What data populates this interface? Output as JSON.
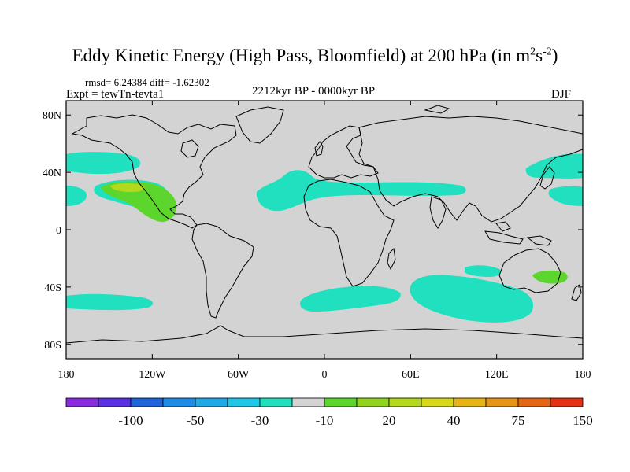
{
  "header": {
    "title": "Eddy Kinetic Energy (High Pass, Bloomfield) at 200 hPa (in m",
    "title_unit_sup1": "2",
    "title_unit_mid": "s",
    "title_unit_sup2": "-2",
    "title_close": ")",
    "stats": "rmsd= 6.24384 diff= -1.62302",
    "experiment": "Expt = tewTn-tevta1",
    "period": "2212kyr BP - 0000kyr BP",
    "season": "DJF"
  },
  "map": {
    "projection": "cylindrical-equidistant",
    "lon_range": [
      -180,
      180
    ],
    "lat_range": [
      -90,
      90
    ],
    "lon_ticks": [
      {
        "value": -180,
        "label": "180"
      },
      {
        "value": -120,
        "label": "120W"
      },
      {
        "value": -60,
        "label": "60W"
      },
      {
        "value": 0,
        "label": "0"
      },
      {
        "value": 60,
        "label": "60E"
      },
      {
        "value": 120,
        "label": "120E"
      },
      {
        "value": 180,
        "label": "180"
      }
    ],
    "lat_ticks": [
      {
        "value": 80,
        "label": "80N"
      },
      {
        "value": 40,
        "label": "40N"
      },
      {
        "value": 0,
        "label": "0"
      },
      {
        "value": -40,
        "label": "40S"
      },
      {
        "value": -80,
        "label": "80S"
      }
    ],
    "background_color": "#d3d3d3",
    "coastline_color": "#000000",
    "anomaly_regions": [
      {
        "level": "-10 to 0",
        "color": "#20e0c0",
        "area": "North Pacific west of North America"
      },
      {
        "level": "-10 to 0",
        "color": "#20e0c0",
        "area": "North Atlantic / Mediterranean band"
      },
      {
        "level": "-10 to 0",
        "color": "#20e0c0",
        "area": "Northwest Pacific near Japan"
      },
      {
        "level": "-10 to 0",
        "color": "#20e0c0",
        "area": "Southern Ocean (Indian sector)"
      },
      {
        "level": "-10 to 0",
        "color": "#20e0c0",
        "area": "South Atlantic"
      },
      {
        "level": "-10 to 0",
        "color": "#20e0c0",
        "area": "South Pacific"
      },
      {
        "level": "0 to 20",
        "color": "#5cd62c",
        "area": "Eastern North Pacific / Mexico"
      },
      {
        "level": "20 to 30",
        "color": "#b4d81c",
        "area": "Eastern North Pacific core"
      },
      {
        "level": "0 to 20",
        "color": "#5cd62c",
        "area": "Eastern Australia / Tasman Sea"
      }
    ]
  },
  "colorbar": {
    "labels": [
      "-100",
      "-50",
      "-30",
      "-10",
      "20",
      "40",
      "75",
      "150"
    ],
    "colors": [
      "#8a2be2",
      "#5a32e6",
      "#1e64dc",
      "#1e8ce6",
      "#1eaae6",
      "#1ec8e6",
      "#20e0c0",
      "#d3d3d3",
      "#5cd62c",
      "#90d41c",
      "#b4d81c",
      "#d8d818",
      "#e6b414",
      "#e69614",
      "#e66414",
      "#e63214"
    ]
  }
}
